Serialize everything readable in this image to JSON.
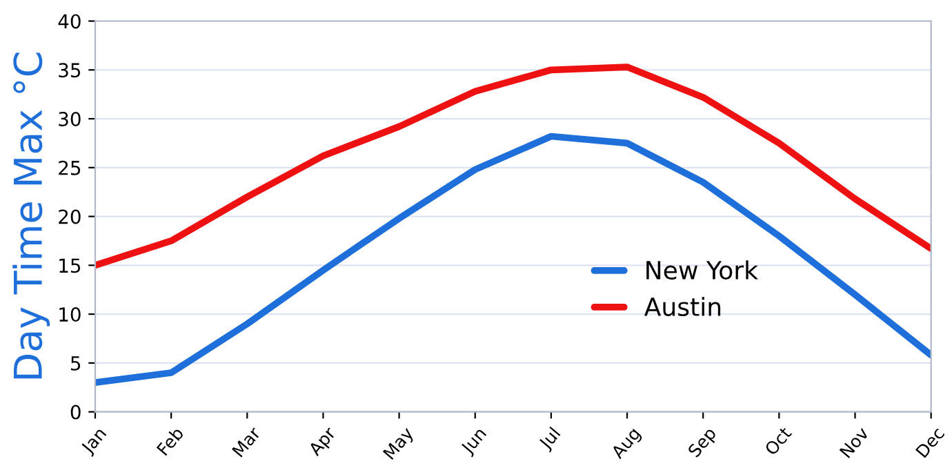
{
  "chart_data": {
    "type": "line",
    "ylabel": "Day Time Max °C",
    "categories": [
      "Jan",
      "Feb",
      "Mar",
      "Apr",
      "May",
      "Jun",
      "Jul",
      "Aug",
      "Sep",
      "Oct",
      "Nov",
      "Dec"
    ],
    "series": [
      {
        "name": "New York",
        "color": "#1e6fd9",
        "values": [
          3,
          4,
          9,
          14.5,
          19.8,
          24.8,
          28.2,
          27.5,
          23.5,
          18,
          12,
          5.8
        ]
      },
      {
        "name": "Austin",
        "color": "#ee1111",
        "values": [
          15,
          17.5,
          22,
          26.2,
          29.2,
          32.8,
          35,
          35.3,
          32.2,
          27.5,
          21.8,
          16.7
        ]
      }
    ],
    "ylim": [
      0,
      40
    ],
    "yticks": [
      0,
      5,
      10,
      15,
      20,
      25,
      30,
      35,
      40
    ],
    "grid": "y",
    "legend": "center right",
    "marker": "none",
    "line_style": "solid"
  }
}
